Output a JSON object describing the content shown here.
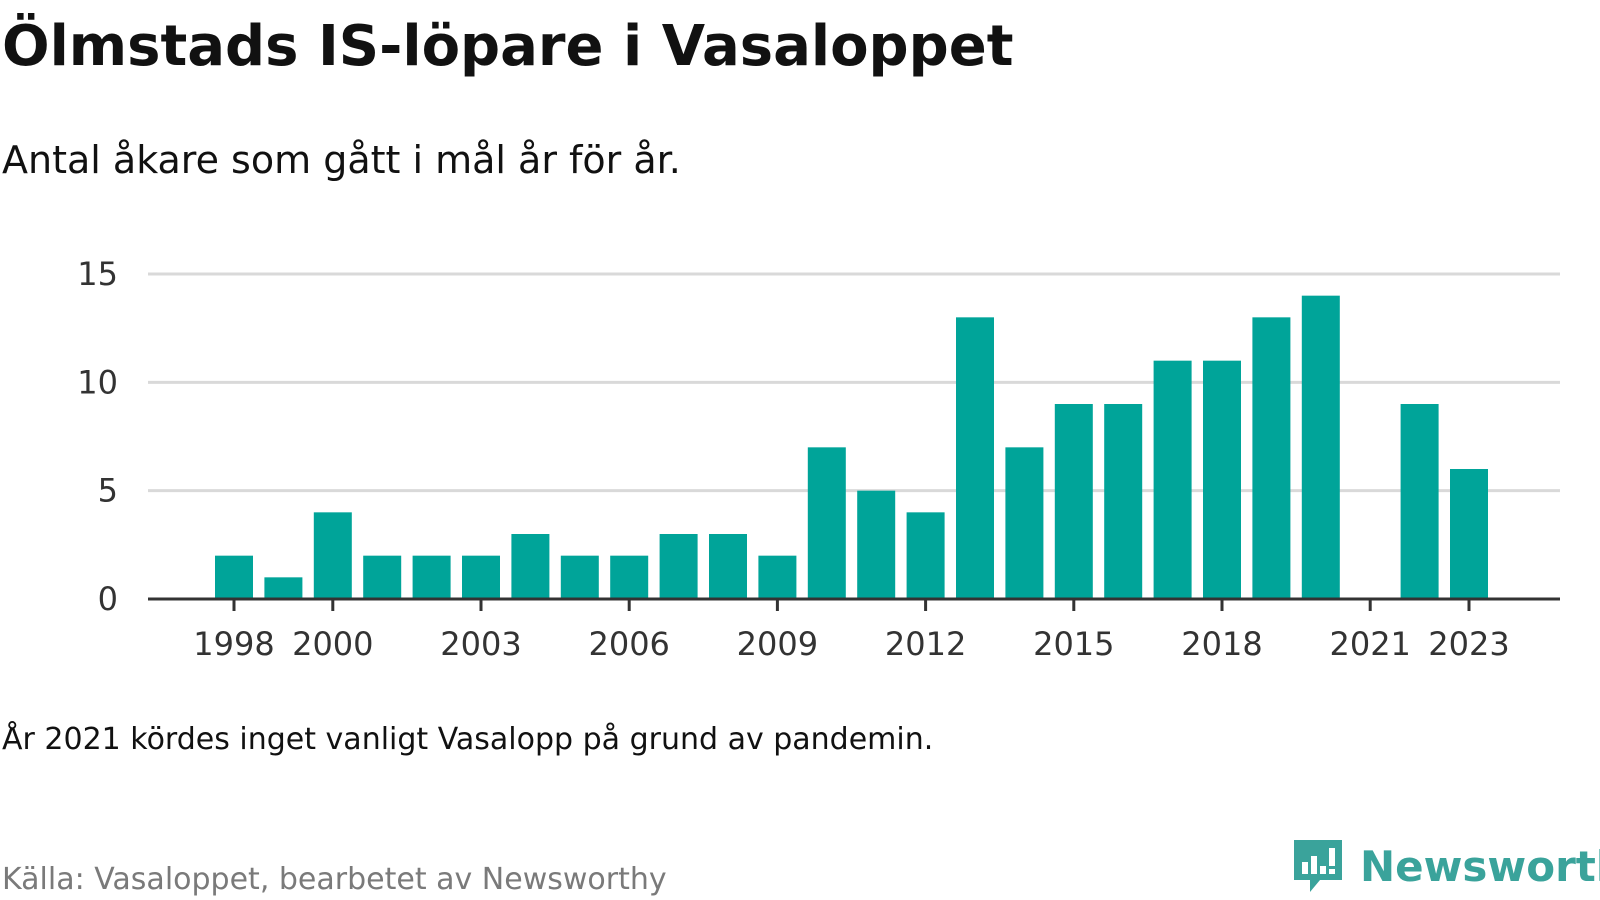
{
  "header": {
    "title": "Ölmstads IS-löpare i Vasaloppet",
    "subtitle": "Antal åkare som gått i mål år för år."
  },
  "footer": {
    "note": "År 2021 kördes inget vanligt Vasalopp på grund av pandemin.",
    "source": "Källa: Vasaloppet, bearbetet av Newsworthy",
    "brand": "Newsworthy"
  },
  "colors": {
    "bar": "#00a499",
    "grid": "#d9d9d9",
    "axis": "#333333",
    "brand": "#3aa39b"
  },
  "chart_data": {
    "type": "bar",
    "x": [
      1998,
      1999,
      2000,
      2001,
      2002,
      2003,
      2004,
      2005,
      2006,
      2007,
      2008,
      2009,
      2010,
      2011,
      2012,
      2013,
      2014,
      2015,
      2016,
      2017,
      2018,
      2019,
      2020,
      2021,
      2022,
      2023
    ],
    "values": [
      2,
      1,
      4,
      2,
      2,
      2,
      3,
      2,
      2,
      3,
      3,
      2,
      7,
      5,
      4,
      13,
      7,
      9,
      9,
      11,
      11,
      13,
      14,
      null,
      9,
      6
    ],
    "x_tick_labels": [
      "1998",
      "2000",
      "2003",
      "2006",
      "2009",
      "2012",
      "2015",
      "2018",
      "2021",
      "2023"
    ],
    "y_ticks": [
      0,
      5,
      10,
      15
    ],
    "ylim": [
      0,
      15
    ],
    "title": "Ölmstads IS-löpare i Vasaloppet",
    "subtitle": "Antal åkare som gått i mål år för år.",
    "grid": true,
    "legend": "none"
  }
}
